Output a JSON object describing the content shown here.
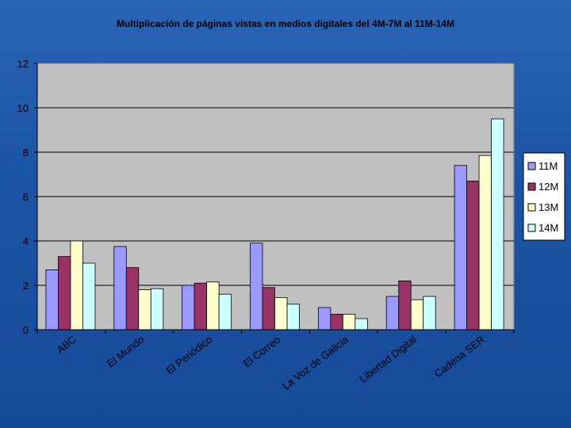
{
  "chart_data": {
    "type": "bar",
    "title": "Multiplicación de páginas vistas en medios digitales del 4M-7M al 11M-14M",
    "xlabel": "",
    "ylabel": "",
    "categories": [
      "ABC",
      "El Mundo",
      "El Periódico",
      "El Correo",
      "La Voz de Galicia",
      "Libertad Digital",
      "Cadena SER"
    ],
    "ylim": [
      0,
      12
    ],
    "yticks": [
      0,
      2,
      4,
      6,
      8,
      10,
      12
    ],
    "grid": true,
    "legend_position": "right",
    "series": [
      {
        "name": "11M",
        "color": "#9999ff",
        "values": [
          2.7,
          3.75,
          2.0,
          3.9,
          1.0,
          1.5,
          7.4
        ]
      },
      {
        "name": "12M",
        "color": "#993366",
        "values": [
          3.3,
          2.8,
          2.1,
          1.9,
          0.7,
          2.2,
          6.7
        ]
      },
      {
        "name": "13M",
        "color": "#ffffcc",
        "values": [
          4.0,
          1.8,
          2.15,
          1.45,
          0.7,
          1.35,
          7.85
        ]
      },
      {
        "name": "14M",
        "color": "#ccffff",
        "values": [
          3.0,
          1.85,
          1.6,
          1.15,
          0.5,
          1.5,
          9.5
        ]
      }
    ]
  }
}
